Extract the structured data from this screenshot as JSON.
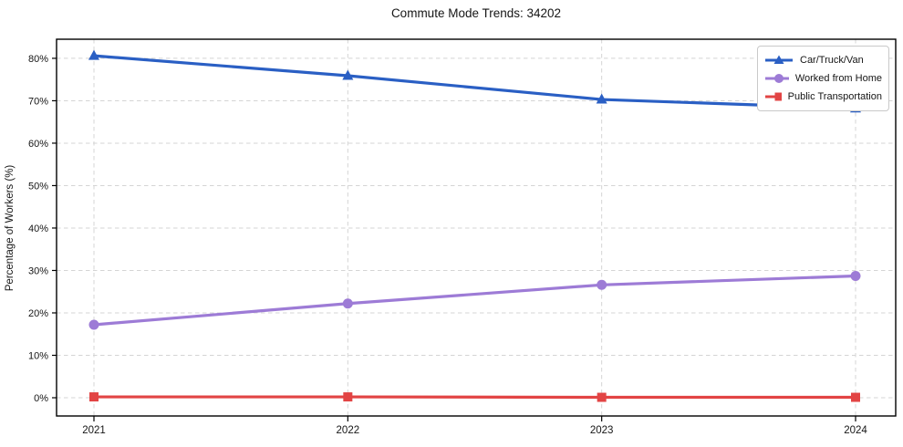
{
  "chart_data": {
    "type": "line",
    "title": "Commute Mode Trends: 34202",
    "xlabel": "",
    "ylabel": "Percentage of Workers (%)",
    "x": [
      2021,
      2022,
      2023,
      2024
    ],
    "xtick_labels": [
      "2021",
      "2022",
      "2023",
      "2024"
    ],
    "yticks": [
      0,
      10,
      20,
      30,
      40,
      50,
      60,
      70,
      80
    ],
    "ytick_labels": [
      "0%",
      "10%",
      "20%",
      "30%",
      "40%",
      "50%",
      "60%",
      "70%",
      "80%"
    ],
    "ylim": [
      -4.3,
      84.5
    ],
    "grid": "dashed, both axes",
    "legend_position": "upper right",
    "frame_color": "#000000",
    "grid_color": "#d4d4d4",
    "text_color": "#151515",
    "background_color": "#ffffff",
    "series": [
      {
        "name": "Car/Truck/Van",
        "color": "#2a5fc4",
        "marker": "triangle",
        "values": [
          80.6,
          75.9,
          70.3,
          68.2
        ]
      },
      {
        "name": "Worked from Home",
        "color": "#9d7bd6",
        "marker": "circle",
        "values": [
          17.2,
          22.2,
          26.6,
          28.7
        ]
      },
      {
        "name": "Public Transportation",
        "color": "#e24444",
        "marker": "square",
        "values": [
          0.2,
          0.2,
          0.1,
          0.1
        ]
      }
    ]
  }
}
